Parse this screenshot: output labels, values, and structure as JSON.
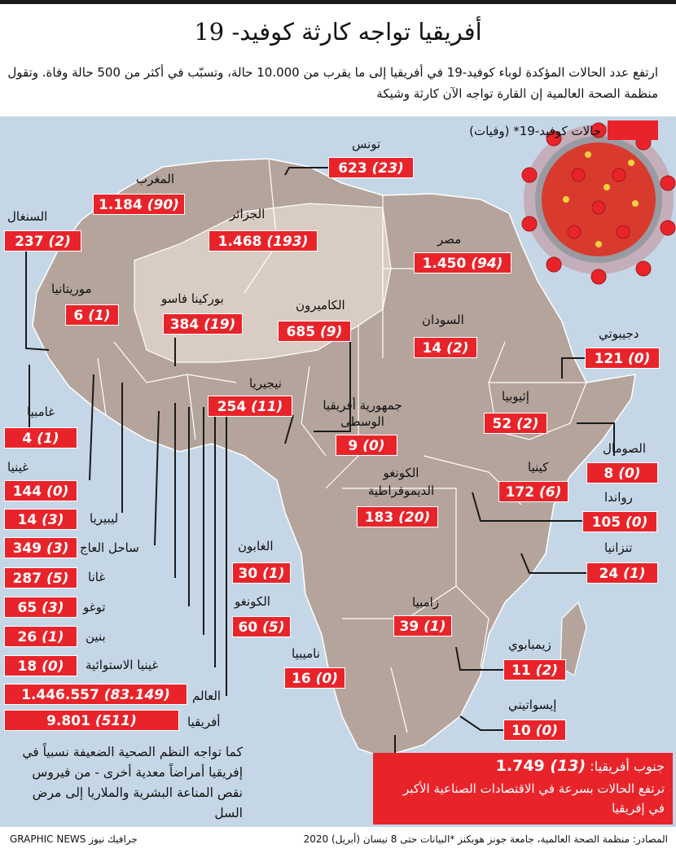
{
  "title": "أفريقيا تواجه كارثة كوفيد- 19",
  "subtitle": "ارتفع عدد الحالات المؤكدة لوباء كوفيد-19 في أفريقيا إلى ما يقرب من 10.000 حالة، وتسبّب في أكثر من 500 حالة وفاة. وتقول منظمة الصحة العالمية إن القارة تواجه الآن كارثة وشيكة",
  "legend": {
    "label": "حالات كوفيد-19* (وفيات)",
    "color": "#e8242a"
  },
  "colors": {
    "accent": "#e8242a",
    "sea": "#c5d7e7",
    "land_dark": "#b4a49c",
    "land_light": "#d9cdc3"
  },
  "countries": [
    {
      "id": "tunisia",
      "name": "تونس",
      "cases": "623",
      "deaths": "(23)"
    },
    {
      "id": "morocco",
      "name": "المغرب",
      "cases": "1.184",
      "deaths": "(90)"
    },
    {
      "id": "algeria",
      "name": "الجزائر",
      "cases": "1.468",
      "deaths": "(193)"
    },
    {
      "id": "egypt",
      "name": "مصر",
      "cases": "1.450",
      "deaths": "(94)"
    },
    {
      "id": "senegal",
      "name": "السنغال",
      "cases": "237",
      "deaths": "(2)"
    },
    {
      "id": "mauritania",
      "name": "موريتانيا",
      "cases": "6",
      "deaths": "(1)"
    },
    {
      "id": "burkina",
      "name": "بوركينا فاسو",
      "cases": "384",
      "deaths": "(19)"
    },
    {
      "id": "cameroon",
      "name": "الكاميرون",
      "cases": "685",
      "deaths": "(9)"
    },
    {
      "id": "sudan",
      "name": "السودان",
      "cases": "14",
      "deaths": "(2)"
    },
    {
      "id": "djibouti",
      "name": "دجيبوتي",
      "cases": "121",
      "deaths": "(0)"
    },
    {
      "id": "gambia",
      "name": "غامبيا",
      "cases": "4",
      "deaths": "(1)"
    },
    {
      "id": "nigeria",
      "name": "نيجيريا",
      "cases": "254",
      "deaths": "(11)"
    },
    {
      "id": "car",
      "name": "جمهورية أفريقيا الوسطى",
      "cases": "9",
      "deaths": "(0)"
    },
    {
      "id": "ethiopia",
      "name": "إثيوبيا",
      "cases": "52",
      "deaths": "(2)"
    },
    {
      "id": "somalia",
      "name": "الصومال",
      "cases": "8",
      "deaths": "(0)"
    },
    {
      "id": "guinea",
      "name": "غينيا",
      "cases": "144",
      "deaths": "(0)"
    },
    {
      "id": "kenya",
      "name": "كينيا",
      "cases": "172",
      "deaths": "(6)"
    },
    {
      "id": "drc",
      "name": "الكونغو الديموقراطية",
      "cases": "183",
      "deaths": "(20)"
    },
    {
      "id": "rwanda",
      "name": "رواندا",
      "cases": "105",
      "deaths": "(0)"
    },
    {
      "id": "liberia",
      "name": "ليبيريا",
      "cases": "14",
      "deaths": "(3)"
    },
    {
      "id": "ivorycoast",
      "name": "ساحل العاج",
      "cases": "349",
      "deaths": "(3)"
    },
    {
      "id": "gabon",
      "name": "الغابون",
      "cases": "30",
      "deaths": "(1)"
    },
    {
      "id": "tanzania",
      "name": "تنزانيا",
      "cases": "24",
      "deaths": "(1)"
    },
    {
      "id": "ghana",
      "name": "غانا",
      "cases": "287",
      "deaths": "(5)"
    },
    {
      "id": "togo",
      "name": "توغو",
      "cases": "65",
      "deaths": "(3)"
    },
    {
      "id": "congo",
      "name": "الكونغو",
      "cases": "60",
      "deaths": "(5)"
    },
    {
      "id": "zambia",
      "name": "زامبيا",
      "cases": "39",
      "deaths": "(1)"
    },
    {
      "id": "benin",
      "name": "بنين",
      "cases": "26",
      "deaths": "(1)"
    },
    {
      "id": "eqguinea",
      "name": "غينيا الاستوائية",
      "cases": "18",
      "deaths": "(0)"
    },
    {
      "id": "namibia",
      "name": "ناميبيا",
      "cases": "16",
      "deaths": "(0)"
    },
    {
      "id": "zimbabwe",
      "name": "زيمبابوي",
      "cases": "11",
      "deaths": "(2)"
    },
    {
      "id": "eswatini",
      "name": "إيسواتيني",
      "cases": "10",
      "deaths": "(0)"
    }
  ],
  "totals": {
    "world": {
      "name": "العالم",
      "cases": "1.446.557",
      "deaths": "(83.149)"
    },
    "africa": {
      "name": "أفريقيا",
      "cases": "9.801",
      "deaths": "(511)"
    }
  },
  "note": "كما تواجه النظم الصحية الضعيفة نسبياً في إفريقيا أمراضاً معدية أخرى - من فيروس نقص المناعة البشرية والملاريا إلى مرض السل",
  "south_africa": {
    "name": "جنوب أفريقيا:",
    "cases": "1.749",
    "deaths": "(13)",
    "text": "ترتفع الحالات بسرعة في الاقتصادات الصناعية الأكبر في إفريقيا"
  },
  "source": "المصادر: منظمة الصحة العالمية، جامعة جونز هوبكنز *البيانات حتى 8 نيسان (أبريل) 2020",
  "brand": "GRAPHIC NEWS جرافيك نيوز"
}
